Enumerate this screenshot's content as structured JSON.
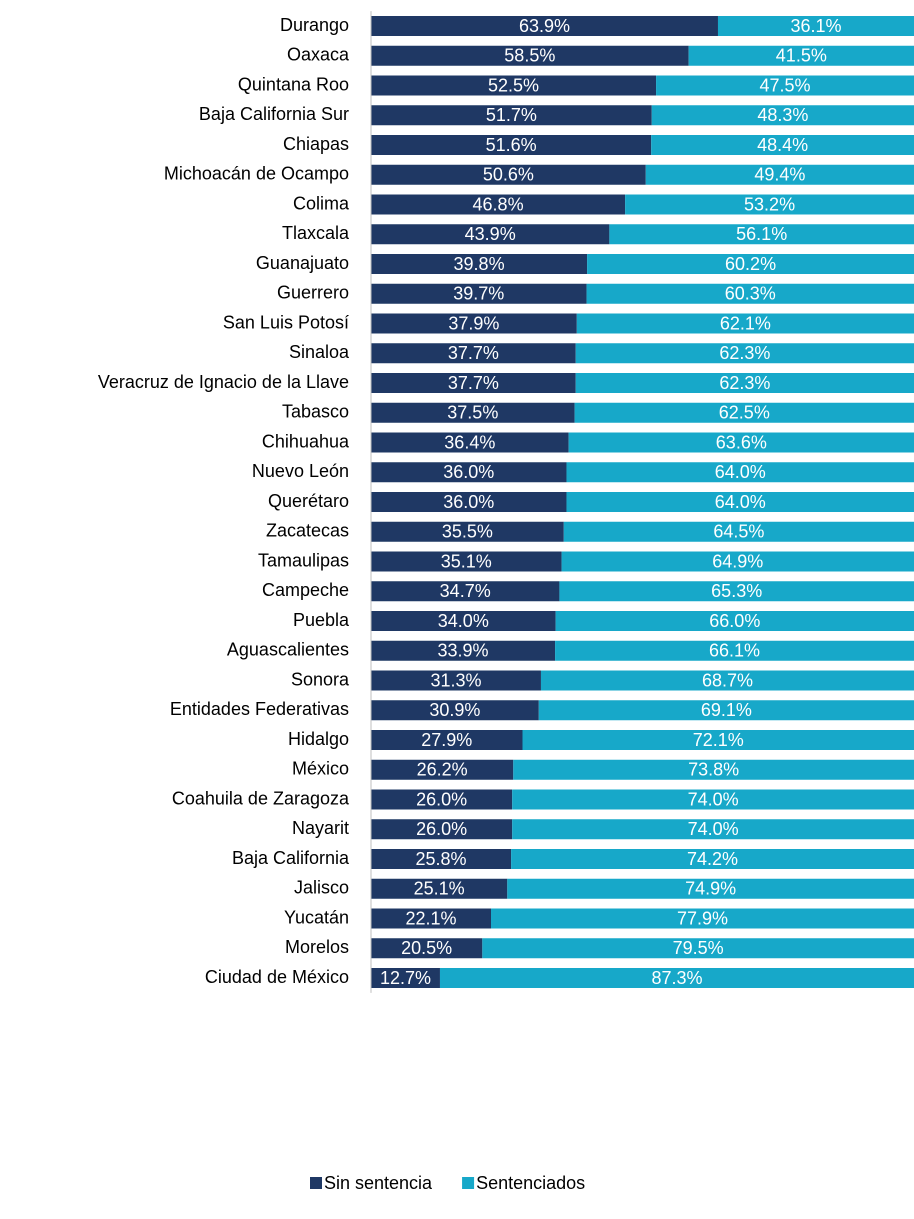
{
  "chart_data": {
    "type": "stacked_bar_horizontal",
    "categories": [
      "Durango",
      "Oaxaca",
      "Quintana Roo",
      "Baja California Sur",
      "Chiapas",
      "Michoacán de Ocampo",
      "Colima",
      "Tlaxcala",
      "Guanajuato",
      "Guerrero",
      "San Luis Potosí",
      "Sinaloa",
      "Veracruz de Ignacio de la Llave",
      "Tabasco",
      "Chihuahua",
      "Nuevo León",
      "Querétaro",
      "Zacatecas",
      "Tamaulipas",
      "Campeche",
      "Puebla",
      "Aguascalientes",
      "Sonora",
      "Entidades Federativas",
      "Hidalgo",
      "México",
      "Coahuila de Zaragoza",
      "Nayarit",
      "Baja California",
      "Jalisco",
      "Yucatán",
      "Morelos",
      "Ciudad de México"
    ],
    "series": [
      {
        "name": "Sin sentencia",
        "color": "#1f3864",
        "values": [
          63.9,
          58.5,
          52.5,
          51.7,
          51.6,
          50.6,
          46.8,
          43.9,
          39.8,
          39.7,
          37.9,
          37.7,
          37.7,
          37.5,
          36.4,
          36.0,
          36.0,
          35.5,
          35.1,
          34.7,
          34.0,
          33.9,
          31.3,
          30.9,
          27.9,
          26.2,
          26.0,
          26.0,
          25.8,
          25.1,
          22.1,
          20.5,
          12.7
        ],
        "value_labels": [
          "63.9%",
          "58.5%",
          "52.5%",
          "51.7%",
          "51.6%",
          "50.6%",
          "46.8%",
          "43.9%",
          "39.8%",
          "39.7%",
          "37.9%",
          "37.7%",
          "37.7%",
          "37.5%",
          "36.4%",
          "36.0%",
          "36.0%",
          "35.5%",
          "35.1%",
          "34.7%",
          "34.0%",
          "33.9%",
          "31.3%",
          "30.9%",
          "27.9%",
          "26.2%",
          "26.0%",
          "26.0%",
          "25.8%",
          "25.1%",
          "22.1%",
          "20.5%",
          "12.7%"
        ]
      },
      {
        "name": "Sentenciados",
        "color": "#17a8c9",
        "values": [
          36.1,
          41.5,
          47.5,
          48.3,
          48.4,
          49.4,
          53.2,
          56.1,
          60.2,
          60.3,
          62.1,
          62.3,
          62.3,
          62.5,
          63.6,
          64.0,
          64.0,
          64.5,
          64.9,
          65.3,
          66.0,
          66.1,
          68.7,
          69.1,
          72.1,
          73.8,
          74.0,
          74.0,
          74.2,
          74.9,
          77.9,
          79.5,
          87.3
        ],
        "value_labels": [
          "36.1%",
          "41.5%",
          "47.5%",
          "48.3%",
          "48.4%",
          "49.4%",
          "53.2%",
          "56.1%",
          "60.2%",
          "60.3%",
          "62.1%",
          "62.3%",
          "62.3%",
          "62.5%",
          "63.6%",
          "64.0%",
          "64.0%",
          "64.5%",
          "64.9%",
          "65.3%",
          "66.0%",
          "66.1%",
          "68.7%",
          "69.1%",
          "72.1%",
          "73.8%",
          "74.0%",
          "74.0%",
          "74.2%",
          "74.9%",
          "77.9%",
          "79.5%",
          "87.3%"
        ]
      }
    ],
    "legend": "bottom"
  }
}
